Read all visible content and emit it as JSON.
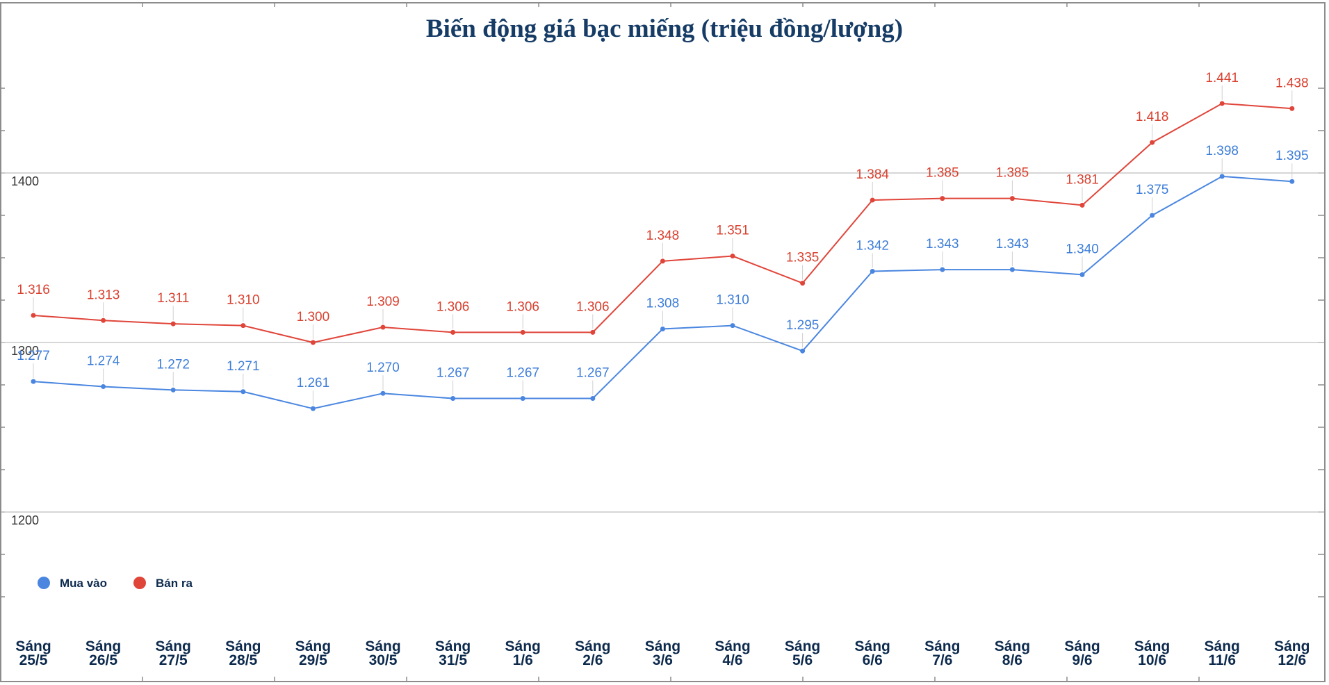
{
  "chart_data": {
    "type": "line",
    "title": "Biến động giá bạc miếng (triệu đồng/lượng)",
    "xlabel": "",
    "ylabel": "",
    "categories": [
      [
        "Sáng",
        "25/5"
      ],
      [
        "Sáng",
        "26/5"
      ],
      [
        "Sáng",
        "27/5"
      ],
      [
        "Sáng",
        "28/5"
      ],
      [
        "Sáng",
        "29/5"
      ],
      [
        "Sáng",
        "30/5"
      ],
      [
        "Sáng",
        "31/5"
      ],
      [
        "Sáng",
        "1/6"
      ],
      [
        "Sáng",
        "2/6"
      ],
      [
        "Sáng",
        "3/6"
      ],
      [
        "Sáng",
        "4/6"
      ],
      [
        "Sáng",
        "5/6"
      ],
      [
        "Sáng",
        "6/6"
      ],
      [
        "Sáng",
        "7/6"
      ],
      [
        "Sáng",
        "8/6"
      ],
      [
        "Sáng",
        "9/6"
      ],
      [
        "Sáng",
        "10/6"
      ],
      [
        "Sáng",
        "11/6"
      ],
      [
        "Sáng",
        "12/6"
      ]
    ],
    "ylim": [
      1135,
      1470
    ],
    "yticks": [
      1200,
      1300,
      1400
    ],
    "grid": true,
    "legend_position": "bottom-left",
    "series": [
      {
        "name": "Mua vào",
        "color": "#4a86e0",
        "label_color": "#3d7dd8",
        "values": [
          1277,
          1274,
          1272,
          1271,
          1261,
          1270,
          1267,
          1267,
          1267,
          1308,
          1310,
          1295,
          1342,
          1343,
          1343,
          1340,
          1375,
          1398,
          1395
        ],
        "labels": [
          "1.277",
          "1.274",
          "1.272",
          "1.271",
          "1.261",
          "1.270",
          "1.267",
          "1.267",
          "1.267",
          "1.308",
          "1.310",
          "1.295",
          "1.342",
          "1.343",
          "1.343",
          "1.340",
          "1.375",
          "1.398",
          "1.395"
        ]
      },
      {
        "name": "Bán ra",
        "color": "#e0453a",
        "label_color": "#d9402f",
        "values": [
          1316,
          1313,
          1311,
          1310,
          1300,
          1309,
          1306,
          1306,
          1306,
          1348,
          1351,
          1335,
          1384,
          1385,
          1385,
          1381,
          1418,
          1441,
          1438
        ],
        "labels": [
          "1.316",
          "1.313",
          "1.311",
          "1.310",
          "1.300",
          "1.309",
          "1.306",
          "1.306",
          "1.306",
          "1.348",
          "1.351",
          "1.335",
          "1.384",
          "1.385",
          "1.385",
          "1.381",
          "1.418",
          "1.441",
          "1.438"
        ]
      }
    ]
  }
}
